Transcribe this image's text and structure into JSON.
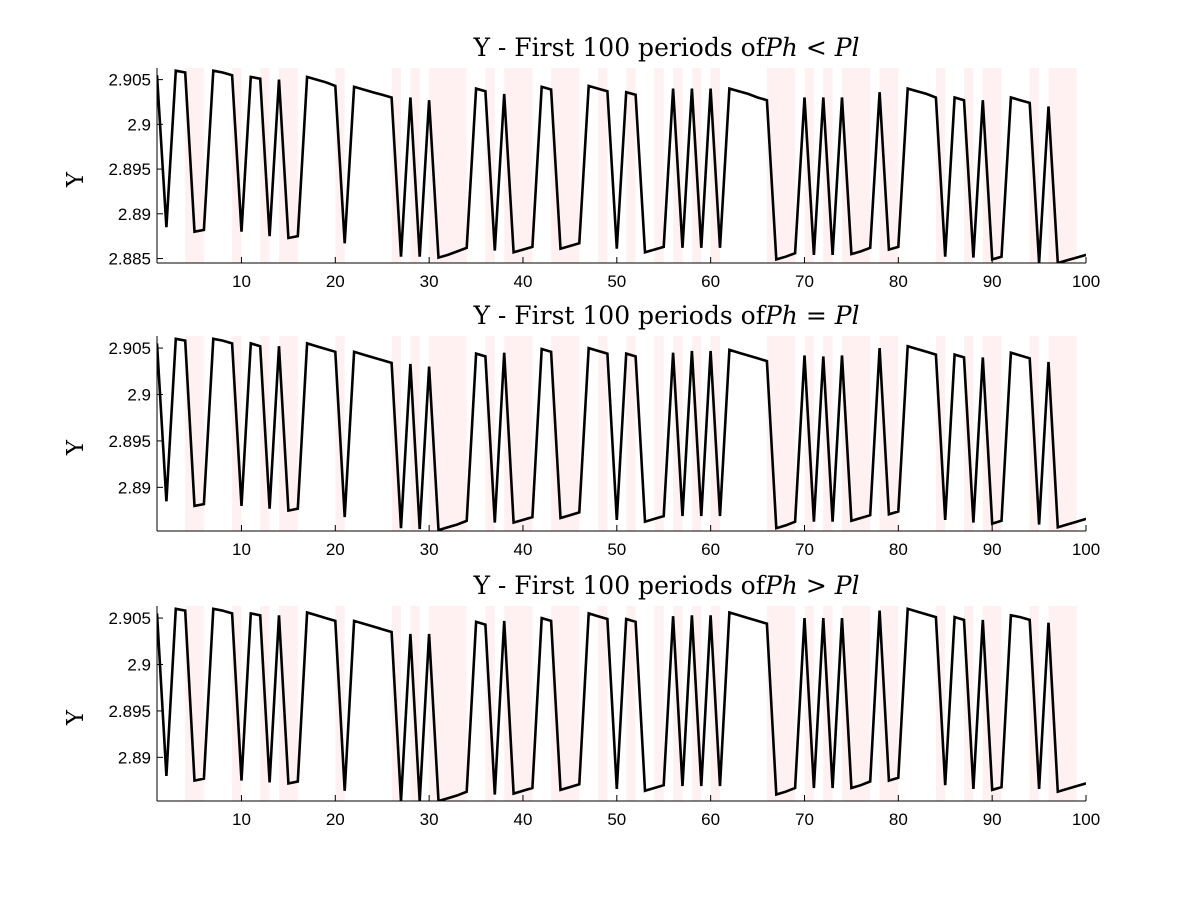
{
  "chart_data": [
    {
      "type": "line",
      "title_prefix": "Y - First 100 periods of",
      "title_math": "Ph < Pl",
      "ylabel": "Y",
      "xlim": [
        1,
        100
      ],
      "ylim": [
        2.8845,
        2.9063
      ],
      "xticks": [
        10,
        20,
        30,
        40,
        50,
        60,
        70,
        80,
        90,
        100
      ],
      "yticks": [
        2.885,
        2.89,
        2.895,
        2.9,
        2.905
      ],
      "ytick_labels": [
        "2.885",
        "2.89",
        "2.895",
        "2.9",
        "2.905"
      ],
      "shaded_periods": [
        [
          4,
          6
        ],
        [
          9,
          10
        ],
        [
          12,
          13
        ],
        [
          14,
          16
        ],
        [
          20,
          21
        ],
        [
          26,
          27
        ],
        [
          28,
          29
        ],
        [
          30,
          34
        ],
        [
          36,
          37
        ],
        [
          38,
          41
        ],
        [
          43,
          46
        ],
        [
          48,
          49
        ],
        [
          51,
          52
        ],
        [
          54,
          55
        ],
        [
          56,
          57
        ],
        [
          58,
          59
        ],
        [
          60,
          61
        ],
        [
          66,
          69
        ],
        [
          70,
          71
        ],
        [
          72,
          73
        ],
        [
          74,
          77
        ],
        [
          78,
          80
        ],
        [
          84,
          85
        ],
        [
          87,
          88
        ],
        [
          89,
          91
        ],
        [
          94,
          95
        ],
        [
          96,
          99
        ]
      ],
      "series": [
        {
          "x": [
            1,
            2,
            3,
            4,
            5,
            6,
            7,
            8,
            9,
            10,
            11,
            12,
            13,
            14,
            15,
            16,
            17,
            18,
            19,
            20,
            21,
            22,
            23,
            24,
            25,
            26,
            27,
            28,
            29,
            30,
            31,
            32,
            33,
            34,
            35,
            36,
            37,
            38,
            39,
            40,
            41,
            42,
            43,
            44,
            45,
            46,
            47,
            48,
            49,
            50,
            51,
            52,
            53,
            54,
            55,
            56,
            57,
            58,
            59,
            60,
            61,
            62,
            63,
            64,
            65,
            66,
            67,
            68,
            69,
            70,
            71,
            72,
            73,
            74,
            75,
            76,
            77,
            78,
            79,
            80,
            81,
            82,
            83,
            84,
            85,
            86,
            87,
            88,
            89,
            90,
            91,
            92,
            93,
            94,
            95,
            96,
            97,
            98,
            99,
            100
          ],
          "y": [
            2.9055,
            2.8885,
            2.906,
            2.9058,
            2.888,
            2.8882,
            2.906,
            2.9058,
            2.9055,
            2.888,
            2.9053,
            2.9051,
            2.8875,
            2.905,
            2.8873,
            2.8875,
            2.9053,
            2.905,
            2.9047,
            2.9043,
            2.8867,
            2.9042,
            2.9039,
            2.9036,
            2.9033,
            2.903,
            2.8852,
            2.903,
            2.8852,
            2.9027,
            2.8851,
            2.8854,
            2.8858,
            2.8862,
            2.904,
            2.9037,
            2.8859,
            2.9034,
            2.8857,
            2.886,
            2.8863,
            2.9042,
            2.9039,
            2.8861,
            2.8864,
            2.8867,
            2.9043,
            2.904,
            2.9037,
            2.8861,
            2.9036,
            2.9033,
            2.8857,
            2.886,
            2.8863,
            2.904,
            2.8862,
            2.904,
            2.8862,
            2.904,
            2.8862,
            2.904,
            2.9037,
            2.9034,
            2.903,
            2.9027,
            2.8849,
            2.8852,
            2.8856,
            2.903,
            2.8854,
            2.903,
            2.8854,
            2.903,
            2.8855,
            2.8858,
            2.8862,
            2.9036,
            2.886,
            2.8863,
            2.904,
            2.9037,
            2.9034,
            2.903,
            2.8852,
            2.903,
            2.9027,
            2.8851,
            2.9027,
            2.8849,
            2.8852,
            2.903,
            2.9027,
            2.9024,
            2.8845,
            2.902,
            2.8845,
            2.8848,
            2.8851,
            2.8854
          ]
        }
      ]
    },
    {
      "type": "line",
      "title_prefix": "Y - First 100 periods of",
      "title_math": "Ph = Pl",
      "ylabel": "Y",
      "xlim": [
        1,
        100
      ],
      "ylim": [
        2.8853,
        2.9063
      ],
      "xticks": [
        10,
        20,
        30,
        40,
        50,
        60,
        70,
        80,
        90,
        100
      ],
      "yticks": [
        2.89,
        2.895,
        2.9,
        2.905
      ],
      "ytick_labels": [
        "2.89",
        "2.895",
        "2.9",
        "2.905"
      ],
      "shaded_periods": [
        [
          4,
          6
        ],
        [
          9,
          10
        ],
        [
          12,
          13
        ],
        [
          14,
          16
        ],
        [
          20,
          21
        ],
        [
          26,
          27
        ],
        [
          28,
          29
        ],
        [
          30,
          34
        ],
        [
          36,
          37
        ],
        [
          38,
          41
        ],
        [
          43,
          46
        ],
        [
          48,
          49
        ],
        [
          51,
          52
        ],
        [
          54,
          55
        ],
        [
          56,
          57
        ],
        [
          58,
          59
        ],
        [
          60,
          61
        ],
        [
          66,
          69
        ],
        [
          70,
          71
        ],
        [
          72,
          73
        ],
        [
          74,
          77
        ],
        [
          78,
          80
        ],
        [
          84,
          85
        ],
        [
          87,
          88
        ],
        [
          89,
          91
        ],
        [
          94,
          95
        ],
        [
          96,
          99
        ]
      ],
      "series": [
        {
          "x": [
            1,
            2,
            3,
            4,
            5,
            6,
            7,
            8,
            9,
            10,
            11,
            12,
            13,
            14,
            15,
            16,
            17,
            18,
            19,
            20,
            21,
            22,
            23,
            24,
            25,
            26,
            27,
            28,
            29,
            30,
            31,
            32,
            33,
            34,
            35,
            36,
            37,
            38,
            39,
            40,
            41,
            42,
            43,
            44,
            45,
            46,
            47,
            48,
            49,
            50,
            51,
            52,
            53,
            54,
            55,
            56,
            57,
            58,
            59,
            60,
            61,
            62,
            63,
            64,
            65,
            66,
            67,
            68,
            69,
            70,
            71,
            72,
            73,
            74,
            75,
            76,
            77,
            78,
            79,
            80,
            81,
            82,
            83,
            84,
            85,
            86,
            87,
            88,
            89,
            90,
            91,
            92,
            93,
            94,
            95,
            96,
            97,
            98,
            99,
            100
          ],
          "y": [
            2.9055,
            2.8885,
            2.906,
            2.9058,
            2.888,
            2.8882,
            2.906,
            2.9058,
            2.9055,
            2.888,
            2.9055,
            2.9052,
            2.8877,
            2.9052,
            2.8875,
            2.8877,
            2.9055,
            2.9052,
            2.9049,
            2.9046,
            2.8868,
            2.9046,
            2.9043,
            2.904,
            2.9037,
            2.9034,
            2.8856,
            2.9033,
            2.8855,
            2.903,
            2.8854,
            2.8857,
            2.886,
            2.8864,
            2.9044,
            2.9041,
            2.8862,
            2.9045,
            2.8862,
            2.8865,
            2.8868,
            2.9049,
            2.9046,
            2.8867,
            2.887,
            2.8873,
            2.905,
            2.9047,
            2.9044,
            2.8865,
            2.9044,
            2.9041,
            2.8863,
            2.8866,
            2.8869,
            2.9045,
            2.8869,
            2.9047,
            2.8869,
            2.9047,
            2.8869,
            2.9048,
            2.9045,
            2.9042,
            2.9039,
            2.9036,
            2.8856,
            2.8859,
            2.8863,
            2.9042,
            2.8863,
            2.9041,
            2.8863,
            2.9042,
            2.8864,
            2.8867,
            2.887,
            2.905,
            2.8871,
            2.8874,
            2.9052,
            2.9049,
            2.9046,
            2.9043,
            2.8865,
            2.9043,
            2.904,
            2.8862,
            2.904,
            2.8861,
            2.8864,
            2.9045,
            2.9042,
            2.9039,
            2.886,
            2.9035,
            2.8857,
            2.886,
            2.8863,
            2.8866
          ]
        }
      ]
    },
    {
      "type": "line",
      "title_prefix": "Y - First 100 periods of",
      "title_math": "Ph > Pl",
      "ylabel": "Y",
      "xlim": [
        1,
        100
      ],
      "ylim": [
        2.8853,
        2.9063
      ],
      "xticks": [
        10,
        20,
        30,
        40,
        50,
        60,
        70,
        80,
        90,
        100
      ],
      "yticks": [
        2.89,
        2.895,
        2.9,
        2.905
      ],
      "ytick_labels": [
        "2.89",
        "2.895",
        "2.9",
        "2.905"
      ],
      "shaded_periods": [
        [
          4,
          6
        ],
        [
          9,
          10
        ],
        [
          12,
          13
        ],
        [
          14,
          16
        ],
        [
          20,
          21
        ],
        [
          26,
          27
        ],
        [
          28,
          29
        ],
        [
          30,
          34
        ],
        [
          36,
          37
        ],
        [
          38,
          41
        ],
        [
          43,
          46
        ],
        [
          48,
          49
        ],
        [
          51,
          52
        ],
        [
          54,
          55
        ],
        [
          56,
          57
        ],
        [
          58,
          59
        ],
        [
          60,
          61
        ],
        [
          66,
          69
        ],
        [
          70,
          71
        ],
        [
          72,
          73
        ],
        [
          74,
          77
        ],
        [
          78,
          80
        ],
        [
          84,
          85
        ],
        [
          87,
          88
        ],
        [
          89,
          91
        ],
        [
          94,
          95
        ],
        [
          96,
          99
        ]
      ],
      "series": [
        {
          "x": [
            1,
            2,
            3,
            4,
            5,
            6,
            7,
            8,
            9,
            10,
            11,
            12,
            13,
            14,
            15,
            16,
            17,
            18,
            19,
            20,
            21,
            22,
            23,
            24,
            25,
            26,
            27,
            28,
            29,
            30,
            31,
            32,
            33,
            34,
            35,
            36,
            37,
            38,
            39,
            40,
            41,
            42,
            43,
            44,
            45,
            46,
            47,
            48,
            49,
            50,
            51,
            52,
            53,
            54,
            55,
            56,
            57,
            58,
            59,
            60,
            61,
            62,
            63,
            64,
            65,
            66,
            67,
            68,
            69,
            70,
            71,
            72,
            73,
            74,
            75,
            76,
            77,
            78,
            79,
            80,
            81,
            82,
            83,
            84,
            85,
            86,
            87,
            88,
            89,
            90,
            91,
            92,
            93,
            94,
            95,
            96,
            97,
            98,
            99,
            100
          ],
          "y": [
            2.9055,
            2.888,
            2.906,
            2.9058,
            2.8875,
            2.8877,
            2.906,
            2.9058,
            2.9055,
            2.8875,
            2.9055,
            2.9053,
            2.8873,
            2.9053,
            2.8872,
            2.8874,
            2.9056,
            2.9053,
            2.905,
            2.9047,
            2.8864,
            2.9047,
            2.9044,
            2.9041,
            2.9038,
            2.9035,
            2.8853,
            2.9033,
            2.8853,
            2.9033,
            2.8853,
            2.8856,
            2.8859,
            2.8863,
            2.9046,
            2.9043,
            2.886,
            2.9047,
            2.8861,
            2.8864,
            2.8867,
            2.905,
            2.9047,
            2.8865,
            2.8868,
            2.8871,
            2.9055,
            2.9052,
            2.9049,
            2.8866,
            2.9049,
            2.9046,
            2.8864,
            2.8867,
            2.887,
            2.9052,
            2.8869,
            2.9053,
            2.8869,
            2.9053,
            2.8869,
            2.9056,
            2.9053,
            2.905,
            2.9047,
            2.9044,
            2.886,
            2.8863,
            2.8867,
            2.905,
            2.8867,
            2.905,
            2.8867,
            2.905,
            2.8867,
            2.887,
            2.8874,
            2.9058,
            2.8875,
            2.8878,
            2.906,
            2.9057,
            2.9054,
            2.9051,
            2.887,
            2.9051,
            2.9048,
            2.8866,
            2.9048,
            2.8865,
            2.8868,
            2.9053,
            2.9051,
            2.9048,
            2.8866,
            2.9045,
            2.8863,
            2.8866,
            2.8869,
            2.8872
          ]
        }
      ]
    }
  ]
}
